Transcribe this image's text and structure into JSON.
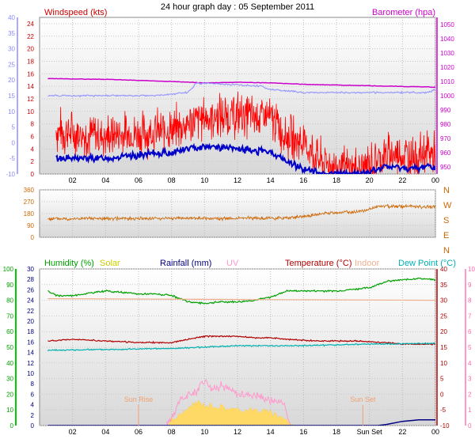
{
  "title": "24 hour graph day : 05 September 2011",
  "chart_data": [
    {
      "type": "line",
      "panel": "wind-baro",
      "labels": {
        "left": "Windspeed (kts)",
        "right": "Barometer (hpa)"
      },
      "x_ticks": [
        "02",
        "04",
        "06",
        "08",
        "10",
        "12",
        "14",
        "16",
        "18",
        "20",
        "22",
        "00"
      ],
      "y_left_inner": {
        "range": [
          0,
          25
        ],
        "ticks": [
          0,
          2,
          4,
          6,
          8,
          10,
          12,
          14,
          16,
          18,
          20,
          22,
          24
        ]
      },
      "y_left_outer": {
        "range": [
          -10,
          40
        ],
        "ticks": [
          -10,
          -5,
          0,
          5,
          10,
          15,
          20,
          25,
          30,
          35,
          40
        ]
      },
      "y_right": {
        "range": [
          945,
          1055
        ],
        "ticks": [
          950,
          960,
          970,
          980,
          990,
          1000,
          1010,
          1020,
          1030,
          1040,
          1050
        ]
      },
      "series": [
        {
          "name": "Windspeed",
          "color": "#ff0000",
          "x": [
            1,
            2,
            4,
            6,
            8,
            10,
            12,
            14,
            15,
            16,
            17,
            18,
            19,
            20,
            21,
            22,
            23,
            23.5,
            24
          ],
          "y": [
            7,
            6.5,
            6,
            6.5,
            7,
            9,
            9.5,
            9,
            6,
            5,
            2,
            1,
            0.5,
            1.5,
            3,
            3,
            3,
            3.5,
            3
          ]
        },
        {
          "name": "Gust",
          "color": "#0000c8",
          "x": [
            1,
            2,
            4,
            6,
            8,
            10,
            12,
            14,
            15,
            16,
            17,
            18,
            19,
            20,
            21,
            22,
            23,
            23.5,
            24
          ],
          "y": [
            2.5,
            2.5,
            2.5,
            3,
            3.5,
            4.5,
            4,
            3.5,
            2,
            0.8,
            0.2,
            0,
            0,
            0.3,
            1.2,
            1,
            0.8,
            1.5,
            1
          ]
        },
        {
          "name": "Barometer",
          "color": "#cc00cc",
          "x": [
            0.5,
            4,
            8,
            10,
            12,
            14,
            16,
            18,
            20,
            22,
            24
          ],
          "y": [
            1012,
            1011.5,
            1010,
            1009,
            1009.5,
            1009,
            1008,
            1007.5,
            1007,
            1006.5,
            1006
          ]
        },
        {
          "name": "Temperature",
          "color": "#9999ff",
          "x": [
            0.5,
            4,
            7,
            8,
            9,
            9.5,
            12,
            13.5,
            14,
            16,
            20,
            23.5,
            24
          ],
          "y": [
            15,
            15,
            15,
            15.5,
            16,
            19,
            18.5,
            18,
            17,
            16,
            16,
            16,
            17
          ]
        }
      ]
    },
    {
      "type": "scatter",
      "panel": "wind-direction",
      "y_range": [
        0,
        360
      ],
      "y_ticks": [
        0,
        90,
        180,
        270,
        360
      ],
      "directions": [
        "N",
        "W",
        "S",
        "E",
        "N"
      ],
      "series": [
        {
          "name": "Direction",
          "color": "#cc6600",
          "x": [
            0.5,
            4,
            8,
            12,
            15,
            16.5,
            17.5,
            18.5,
            19.5,
            20.5,
            22,
            24
          ],
          "y": [
            140,
            142,
            145,
            143,
            148,
            165,
            185,
            190,
            195,
            235,
            235,
            230
          ]
        }
      ]
    },
    {
      "type": "line",
      "panel": "climate",
      "legend": [
        "Humidity (%)",
        "Solar",
        "Rainfall (mm)",
        "UV",
        "Temperature (°C)",
        "Indoor",
        "Dew Point (°C)"
      ],
      "legend_colors": [
        "#00a000",
        "#cccc00",
        "#000080",
        "#ff99cc",
        "#b00000",
        "#f0b090",
        "#00b0b0"
      ],
      "annotations": [
        "Sun Rise",
        "Sun Set"
      ],
      "x_ticks": [
        "02",
        "04",
        "06",
        "08",
        "10",
        "12",
        "14",
        "16",
        "18",
        "Sun Set",
        "22",
        "00"
      ],
      "y_humidity": {
        "range": [
          0,
          100
        ],
        "ticks": [
          0,
          10,
          20,
          30,
          40,
          50,
          60,
          70,
          80,
          90,
          100
        ]
      },
      "y_rain": {
        "range": [
          0,
          30
        ],
        "ticks": [
          0,
          2,
          4,
          6,
          8,
          10,
          12,
          14,
          16,
          18,
          20,
          22,
          24,
          26,
          28,
          30
        ]
      },
      "y_temp": {
        "range": [
          -10,
          40
        ],
        "ticks": [
          -10,
          -5,
          0,
          5,
          10,
          15,
          20,
          25,
          30,
          35,
          40
        ]
      },
      "y_uv": {
        "range": [
          0,
          10
        ],
        "ticks": [
          0,
          1,
          2,
          3,
          4,
          5,
          6,
          7,
          8,
          9,
          10
        ]
      },
      "series": [
        {
          "name": "Humidity",
          "color": "#00a000",
          "x": [
            0.5,
            1,
            2,
            4,
            6,
            7,
            8,
            9,
            10,
            11,
            12,
            13,
            14,
            15,
            16,
            18,
            20,
            21,
            22,
            23,
            24
          ],
          "y": [
            86,
            83,
            83,
            86,
            84,
            84,
            83,
            79,
            78,
            79,
            79,
            80,
            82,
            86,
            86,
            86,
            88,
            92,
            93,
            94,
            93
          ]
        },
        {
          "name": "Indoor",
          "color": "#f0b090",
          "x": [
            0.5,
            24
          ],
          "y": [
            30.5,
            30
          ]
        },
        {
          "name": "Temperature",
          "color": "#b00000",
          "x": [
            0.5,
            2,
            4,
            6,
            8,
            9,
            10,
            11,
            12,
            13,
            14,
            15,
            17,
            19,
            21,
            22,
            23,
            24
          ],
          "y": [
            17,
            17.5,
            17,
            16.5,
            16.5,
            17.5,
            18.5,
            18.5,
            18.5,
            18,
            18,
            17.5,
            17,
            17,
            16.5,
            16,
            16,
            16
          ]
        },
        {
          "name": "Dew Point",
          "color": "#00b0b0",
          "x": [
            0.5,
            4,
            8,
            12,
            16,
            20,
            24
          ],
          "y": [
            14,
            14.3,
            14.6,
            15.5,
            15.5,
            16,
            16.2
          ]
        },
        {
          "name": "Solar",
          "color": "#ffcc44",
          "x": [
            7.7,
            8,
            9,
            9.5,
            10,
            11,
            12,
            13,
            14,
            14.5,
            15,
            15.3
          ],
          "y": [
            0,
            1,
            3,
            4.5,
            4,
            3.5,
            3,
            3,
            2.5,
            2,
            1,
            0
          ]
        },
        {
          "name": "UV",
          "color": "#ff99cc",
          "x": [
            7.7,
            8.5,
            9.5,
            10,
            10.5,
            11,
            12,
            13,
            14,
            14.8,
            15.2
          ],
          "y": [
            0,
            1.6,
            2.2,
            3,
            2.3,
            2.6,
            2,
            2,
            1.6,
            1.5,
            0
          ]
        },
        {
          "name": "Rainfall",
          "color": "#000080",
          "x": [
            0.5,
            20.5,
            21,
            22,
            23,
            23.7,
            24
          ],
          "y": [
            0,
            0,
            0.2,
            0.8,
            1.1,
            1.1,
            1.1
          ]
        }
      ]
    }
  ]
}
